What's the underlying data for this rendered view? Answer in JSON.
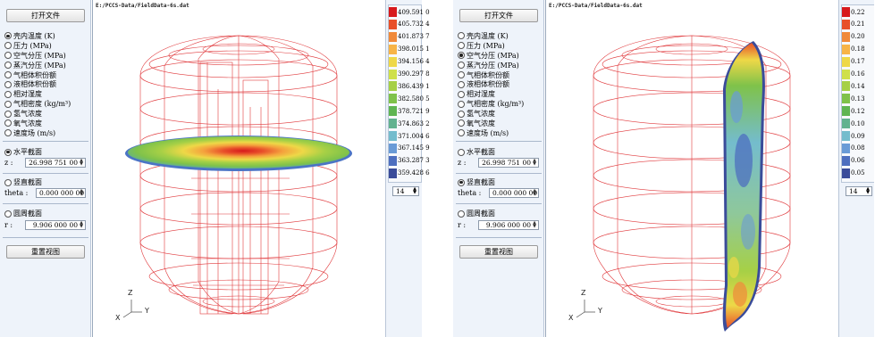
{
  "left_pane": {
    "open_button": "打开文件",
    "variables": [
      {
        "label": "壳内温度 (K)",
        "selected": true
      },
      {
        "label": "压力 (MPa)",
        "selected": false
      },
      {
        "label": "空气分压 (MPa)",
        "selected": false
      },
      {
        "label": "蒸汽分压 (MPa)",
        "selected": false
      },
      {
        "label": "气相体积份额",
        "selected": false
      },
      {
        "label": "液相体积份额",
        "selected": false
      },
      {
        "label": "相对湿度",
        "selected": false
      },
      {
        "label": "气相密度 (kg/m³)",
        "selected": false
      },
      {
        "label": "氢气浓度",
        "selected": false
      },
      {
        "label": "氧气浓度",
        "selected": false
      },
      {
        "label": "速度场 (m/s)",
        "selected": false
      }
    ],
    "sections": {
      "horizontal": {
        "label": "水平截面",
        "selected": true,
        "field_label": "z :",
        "value": "26.998 751 00"
      },
      "vertical": {
        "label": "竖直截面",
        "selected": false,
        "field_label": "theta :",
        "value": "0.000 000 00"
      },
      "cylinder": {
        "label": "圆周截面",
        "selected": false,
        "field_label": "r :",
        "value": "9.906 000 00"
      }
    },
    "reset_button": "重置视图",
    "file_path": "E:/PCCS-Data/FieldData-6s.dat",
    "axes": {
      "z": "Z",
      "x": "X",
      "y": "Y"
    },
    "legend_values": [
      "409.591 0",
      "405.732 4",
      "401.873 7",
      "398.015 1",
      "394.156 4",
      "390.297 8",
      "386.439 1",
      "382.580 5",
      "378.721 9",
      "374.863 2",
      "371.004 6",
      "367.145 9",
      "363.287 3",
      "359.428 6"
    ],
    "legend_count": "14"
  },
  "right_pane": {
    "open_button": "打开文件",
    "variables": [
      {
        "label": "壳内温度 (K)",
        "selected": false
      },
      {
        "label": "压力 (MPa)",
        "selected": false
      },
      {
        "label": "空气分压 (MPa)",
        "selected": true
      },
      {
        "label": "蒸汽分压 (MPa)",
        "selected": false
      },
      {
        "label": "气相体积份额",
        "selected": false
      },
      {
        "label": "液相体积份额",
        "selected": false
      },
      {
        "label": "相对湿度",
        "selected": false
      },
      {
        "label": "气相密度 (kg/m³)",
        "selected": false
      },
      {
        "label": "氢气浓度",
        "selected": false
      },
      {
        "label": "氧气浓度",
        "selected": false
      },
      {
        "label": "速度场 (m/s)",
        "selected": false
      }
    ],
    "sections": {
      "horizontal": {
        "label": "水平截面",
        "selected": false,
        "field_label": "z :",
        "value": "26.998 751 00"
      },
      "vertical": {
        "label": "竖直截面",
        "selected": true,
        "field_label": "theta :",
        "value": "0.000 000 00"
      },
      "cylinder": {
        "label": "圆周截面",
        "selected": false,
        "field_label": "r :",
        "value": "9.906 000 00"
      }
    },
    "reset_button": "重置视图",
    "file_path": "E:/PCCS-Data/FieldData-6s.dat",
    "axes": {
      "z": "Z",
      "x": "X",
      "y": "Y"
    },
    "legend_values": [
      "0.22",
      "0.21",
      "0.20",
      "0.18",
      "0.17",
      "0.16",
      "0.14",
      "0.13",
      "0.12",
      "0.10",
      "0.09",
      "0.08",
      "0.06",
      "0.05"
    ],
    "legend_count": "14"
  },
  "legend_colors": [
    "#d7191c",
    "#e8502a",
    "#f08a3a",
    "#f7b447",
    "#eed847",
    "#cfe04a",
    "#a6d046",
    "#7fc24a",
    "#5fb552",
    "#62b28f",
    "#74bccd",
    "#6a9bd6",
    "#4e6fbf",
    "#3a4c9a"
  ]
}
